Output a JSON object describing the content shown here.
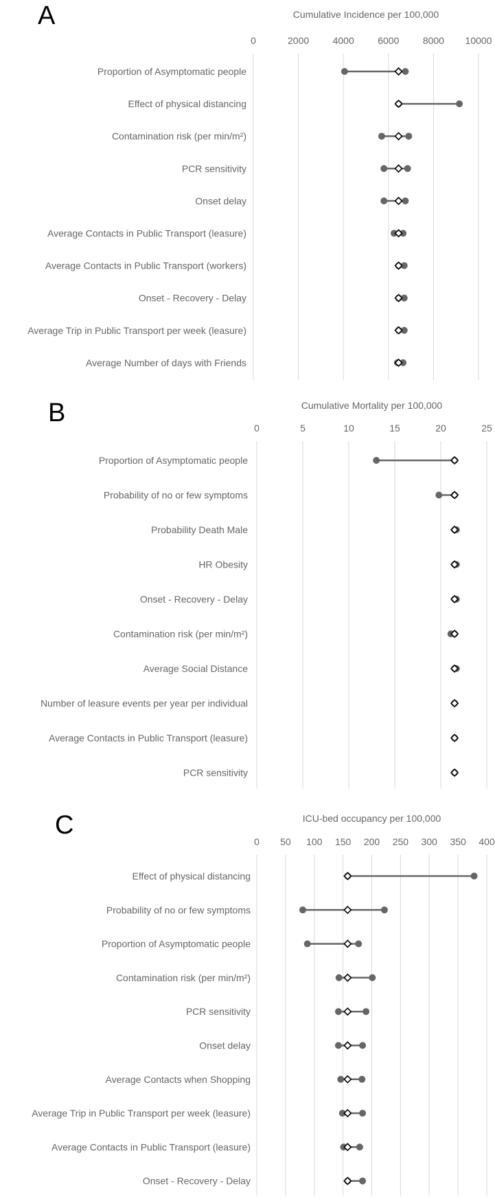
{
  "chart_data": [
    {
      "type": "scatter",
      "panel": "A",
      "title": "Cumulative Incidence per 100,000",
      "xlim": [
        0,
        10000
      ],
      "ticks": [
        "0",
        "2000",
        "4000",
        "6000",
        "8000",
        "10000"
      ],
      "grid": true,
      "categories": [
        "Proportion of Asymptomatic people",
        "Effect of physical distancing",
        "Contamination risk (per min/m²)",
        "PCR sensitivity",
        "Onset delay",
        "Average Contacts in Public Transport (leasure)",
        "Average Contacts in Public Transport (workers)",
        "Onset - Recovery - Delay",
        "Average Trip in Public Transport per week (leasure)",
        "Average Number of days with Friends"
      ],
      "baseline": [
        6450,
        6450,
        6450,
        6450,
        6450,
        6450,
        6450,
        6450,
        6450,
        6450
      ],
      "low": [
        4050,
        6450,
        5700,
        5800,
        5800,
        6250,
        6450,
        6450,
        6450,
        6400
      ],
      "high": [
        6750,
        9150,
        6900,
        6850,
        6750,
        6650,
        6700,
        6700,
        6700,
        6650
      ]
    },
    {
      "type": "scatter",
      "panel": "B",
      "title": "Cumulative Mortality per 100,000",
      "xlim": [
        0,
        25
      ],
      "ticks": [
        "0",
        "5",
        "10",
        "15",
        "20",
        "25"
      ],
      "grid": true,
      "categories": [
        "Proportion of Asymptomatic people",
        "Probability of no or few symptoms",
        "Probability Death Male",
        "HR Obesity",
        "Onset - Recovery - Delay",
        "Contamination risk (per min/m²)",
        "Average Social Distance",
        "Number of leasure events per year per individual",
        "Average Contacts in Public Transport (leasure)",
        "PCR sensitivity"
      ],
      "baseline": [
        21.5,
        21.5,
        21.5,
        21.5,
        21.5,
        21.5,
        21.5,
        21.5,
        21.5,
        21.5
      ],
      "low": [
        13.0,
        19.8,
        21.5,
        21.5,
        21.5,
        21.1,
        21.5,
        21.5,
        21.5,
        21.5
      ],
      "high": [
        21.5,
        21.5,
        21.7,
        21.7,
        21.7,
        21.5,
        21.7,
        21.5,
        21.5,
        21.5
      ]
    },
    {
      "type": "scatter",
      "panel": "C",
      "title": "ICU-bed occupancy per 100,000",
      "xlim": [
        0,
        400
      ],
      "ticks": [
        "0",
        "50",
        "100",
        "150",
        "200",
        "250",
        "300",
        "350",
        "400"
      ],
      "grid": true,
      "categories": [
        "Effect of physical distancing",
        "Probability of no or few symptoms",
        "Proportion of Asymptomatic people",
        "Contamination risk (per min/m²)",
        "PCR sensitivity",
        "Onset delay",
        "Average Contacts when Shopping",
        "Average Trip in Public Transport per week (leasure)",
        "Average Contacts in Public Transport (leasure)",
        "Onset - Recovery - Delay"
      ],
      "baseline": [
        158,
        158,
        158,
        158,
        158,
        158,
        158,
        158,
        158,
        158
      ],
      "low": [
        158,
        80,
        88,
        143,
        142,
        142,
        146,
        149,
        151,
        158
      ],
      "high": [
        378,
        222,
        177,
        201,
        190,
        184,
        183,
        184,
        179,
        184
      ]
    }
  ]
}
